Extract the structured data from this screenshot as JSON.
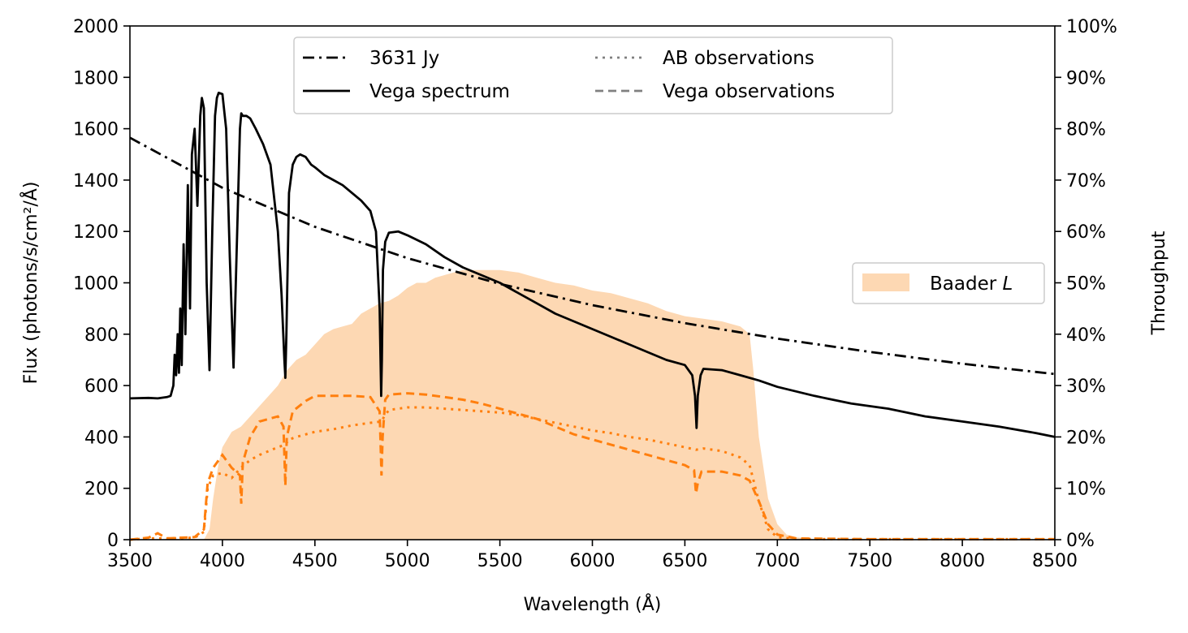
{
  "chart_data": {
    "type": "line",
    "xlabel": "Wavelength (Å)",
    "ylabel_left": "Flux (photons/s/cm²/Å)",
    "ylabel_right": "Throughput",
    "xlim": [
      3500,
      8500
    ],
    "ylim_left": [
      0,
      2000
    ],
    "ylim_right": [
      0,
      100
    ],
    "x_ticks": [
      "3500",
      "4000",
      "4500",
      "5000",
      "5500",
      "6000",
      "6500",
      "7000",
      "7500",
      "8000",
      "8500"
    ],
    "y_ticks_left": [
      "0",
      "200",
      "400",
      "600",
      "800",
      "1000",
      "1200",
      "1400",
      "1600",
      "1800",
      "2000"
    ],
    "y_ticks_right": [
      "0%",
      "10%",
      "20%",
      "30%",
      "40%",
      "50%",
      "60%",
      "70%",
      "80%",
      "90%",
      "100%"
    ],
    "grid": false,
    "legend_main": {
      "placement": "top-center",
      "entries": [
        {
          "label": "3631 Jy",
          "style": "dashdot",
          "color": "#000000"
        },
        {
          "label": "Vega spectrum",
          "style": "solid",
          "color": "#000000"
        },
        {
          "label": "AB observations",
          "style": "dotted",
          "color": "#808080"
        },
        {
          "label": "Vega observations",
          "style": "dashed",
          "color": "#808080"
        }
      ]
    },
    "legend_filter": {
      "placement": "center-right",
      "label_prefix": "Baader ",
      "label_italic": "L"
    },
    "colors": {
      "filter_fill": "#fdd8b3",
      "observations": "#ff7f0e",
      "reference": "#000000"
    },
    "series": [
      {
        "name": "3631 Jy",
        "axis": "left",
        "x": [
          3500,
          4000,
          4500,
          5000,
          5500,
          6000,
          6500,
          7000,
          7500,
          8000,
          8500
        ],
        "y": [
          1565,
          1370,
          1218,
          1096,
          996,
          913,
          843,
          783,
          731,
          685,
          645
        ]
      },
      {
        "name": "Vega spectrum",
        "axis": "left",
        "x": [
          3500,
          3600,
          3650,
          3700,
          3720,
          3735,
          3742,
          3750,
          3758,
          3765,
          3772,
          3780,
          3790,
          3800,
          3813,
          3825,
          3835,
          3850,
          3865,
          3880,
          3889,
          3900,
          3915,
          3930,
          3945,
          3960,
          3970,
          3980,
          4000,
          4020,
          4040,
          4060,
          4080,
          4095,
          4102,
          4110,
          4130,
          4150,
          4180,
          4220,
          4260,
          4300,
          4320,
          4335,
          4340,
          4346,
          4360,
          4380,
          4400,
          4420,
          4450,
          4480,
          4500,
          4550,
          4600,
          4650,
          4700,
          4750,
          4800,
          4830,
          4850,
          4858,
          4862,
          4868,
          4880,
          4900,
          4950,
          5000,
          5100,
          5200,
          5300,
          5400,
          5500,
          5600,
          5700,
          5800,
          5900,
          6000,
          6100,
          6200,
          6300,
          6400,
          6500,
          6540,
          6555,
          6563,
          6570,
          6585,
          6600,
          6700,
          6800,
          6900,
          7000,
          7200,
          7400,
          7600,
          7800,
          8000,
          8200,
          8400,
          8500
        ],
        "y": [
          550,
          552,
          550,
          555,
          560,
          600,
          720,
          640,
          800,
          650,
          900,
          680,
          1150,
          800,
          1380,
          900,
          1500,
          1600,
          1300,
          1650,
          1720,
          1680,
          1000,
          660,
          1200,
          1650,
          1720,
          1740,
          1735,
          1600,
          1100,
          670,
          1200,
          1600,
          1660,
          1650,
          1650,
          1640,
          1600,
          1540,
          1460,
          1200,
          950,
          700,
          630,
          800,
          1350,
          1460,
          1490,
          1500,
          1490,
          1460,
          1450,
          1420,
          1400,
          1380,
          1350,
          1320,
          1280,
          1200,
          900,
          560,
          700,
          1050,
          1160,
          1195,
          1200,
          1185,
          1150,
          1100,
          1060,
          1030,
          1000,
          960,
          920,
          880,
          850,
          820,
          790,
          760,
          730,
          700,
          680,
          640,
          560,
          435,
          560,
          640,
          665,
          660,
          640,
          620,
          595,
          560,
          530,
          510,
          480,
          460,
          440,
          415,
          400
        ]
      },
      {
        "name": "AB observations",
        "axis": "left",
        "x": [
          3500,
          3600,
          3700,
          3850,
          3900,
          3920,
          3950,
          4000,
          4050,
          4100,
          4150,
          4200,
          4300,
          4340,
          4360,
          4400,
          4500,
          4600,
          4700,
          4800,
          4860,
          4875,
          4900,
          5000,
          5100,
          5200,
          5300,
          5400,
          5500,
          5600,
          5700,
          5800,
          5900,
          6000,
          6100,
          6200,
          6300,
          6400,
          6500,
          6560,
          6600,
          6700,
          6800,
          6850,
          6900,
          6950,
          7000,
          7100,
          7500,
          8000,
          8500
        ],
        "y": [
          0,
          5,
          5,
          8,
          30,
          200,
          250,
          260,
          240,
          280,
          310,
          330,
          360,
          370,
          390,
          400,
          420,
          430,
          445,
          455,
          460,
          480,
          505,
          515,
          515,
          510,
          505,
          500,
          495,
          485,
          470,
          455,
          440,
          425,
          415,
          400,
          390,
          375,
          360,
          350,
          355,
          345,
          320,
          290,
          150,
          40,
          10,
          3,
          2,
          2,
          2
        ]
      },
      {
        "name": "Vega observations",
        "axis": "left",
        "x": [
          3500,
          3600,
          3650,
          3700,
          3850,
          3900,
          3920,
          3950,
          4000,
          4050,
          4095,
          4102,
          4110,
          4150,
          4200,
          4300,
          4330,
          4340,
          4348,
          4380,
          4450,
          4500,
          4600,
          4700,
          4800,
          4850,
          4860,
          4866,
          4880,
          4900,
          5000,
          5100,
          5200,
          5300,
          5400,
          5500,
          5600,
          5700,
          5800,
          5900,
          6000,
          6100,
          6200,
          6300,
          6400,
          6500,
          6550,
          6560,
          6570,
          6590,
          6700,
          6800,
          6850,
          6900,
          6950,
          7000,
          7100,
          7500,
          8000,
          8500
        ],
        "y": [
          0,
          8,
          25,
          5,
          10,
          40,
          220,
          280,
          330,
          280,
          250,
          140,
          300,
          400,
          460,
          480,
          440,
          210,
          400,
          500,
          540,
          560,
          560,
          560,
          555,
          500,
          250,
          400,
          545,
          565,
          570,
          565,
          555,
          545,
          530,
          510,
          490,
          470,
          440,
          410,
          390,
          370,
          350,
          330,
          310,
          290,
          270,
          180,
          220,
          265,
          265,
          250,
          230,
          150,
          60,
          20,
          5,
          2,
          2,
          2
        ]
      },
      {
        "name": "Baader L",
        "axis": "right",
        "x": [
          3500,
          3900,
          3930,
          3950,
          3980,
          4000,
          4050,
          4100,
          4150,
          4200,
          4250,
          4300,
          4350,
          4400,
          4450,
          4500,
          4550,
          4600,
          4650,
          4700,
          4750,
          4800,
          4850,
          4900,
          4950,
          5000,
          5050,
          5100,
          5150,
          5200,
          5250,
          5300,
          5400,
          5500,
          5600,
          5700,
          5800,
          5900,
          6000,
          6100,
          6200,
          6300,
          6400,
          6500,
          6600,
          6700,
          6800,
          6850,
          6870,
          6900,
          6950,
          7000,
          7050,
          7100,
          7200,
          8500
        ],
        "y": [
          0,
          0,
          2,
          8,
          15,
          18,
          21,
          22,
          24,
          26,
          28,
          30,
          33,
          35,
          36,
          38,
          40,
          41,
          41.5,
          42,
          44,
          45,
          46,
          46.5,
          47.5,
          49,
          50,
          50,
          51,
          51.5,
          52,
          52.5,
          52.5,
          52.5,
          52,
          51,
          50,
          49.5,
          48.5,
          48,
          47,
          46,
          44.5,
          43.5,
          43,
          42.5,
          41.5,
          40,
          33,
          20,
          8,
          3,
          1,
          0.5,
          0,
          0
        ]
      }
    ]
  }
}
